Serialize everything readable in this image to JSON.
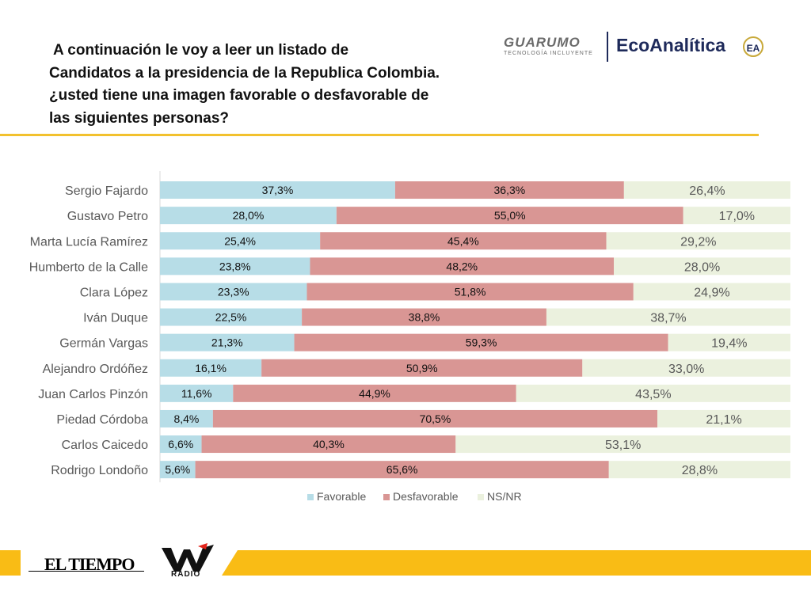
{
  "question": {
    "lines": [
      "A continuación le voy a leer un listado de",
      "Candidatos a la presidencia de la Republica Colombia.",
      "¿usted tiene una imagen favorable o desfavorable de",
      "las siguientes personas?"
    ]
  },
  "logos": {
    "guarumo": "GUARUMO",
    "guarumo_tagline": "TECNOLOGÍA INCLUYENTE",
    "ecoanalitica": "EcoAnalítica",
    "ecoanalitica_badge": "EA"
  },
  "footer": {
    "eltiempo": "EL TIEMPO",
    "wradio_letter": "W",
    "wradio_word": "RADIO"
  },
  "colors": {
    "favorable": "#b7dde7",
    "desfavorable": "#d99694",
    "nsnr": "#ebf1de",
    "accent": "#f9bc15"
  },
  "chart_data": {
    "type": "bar",
    "orientation": "horizontal",
    "stacked": true,
    "percent_scale": true,
    "categories": [
      "Sergio Fajardo",
      "Gustavo Petro",
      "Marta Lucía Ramírez",
      "Humberto de la Calle",
      "Clara López",
      "Iván Duque",
      "Germán Vargas",
      "Alejandro Ordóñez",
      "Juan Carlos Pinzón",
      "Piedad Córdoba",
      "Carlos Caicedo",
      "Rodrigo Londoño"
    ],
    "series": [
      {
        "name": "Favorable",
        "values": [
          37.3,
          28.0,
          25.4,
          23.8,
          23.3,
          22.5,
          21.3,
          16.1,
          11.6,
          8.4,
          6.6,
          5.6
        ],
        "labels": [
          "37,3%",
          "28,0%",
          "25,4%",
          "23,8%",
          "23,3%",
          "22,5%",
          "21,3%",
          "16,1%",
          "11,6%",
          "8,4%",
          "6,6%",
          "5,6%"
        ]
      },
      {
        "name": "Desfavorable",
        "values": [
          36.3,
          55.0,
          45.4,
          48.2,
          51.8,
          38.8,
          59.3,
          50.9,
          44.9,
          70.5,
          40.3,
          65.6
        ],
        "labels": [
          "36,3%",
          "55,0%",
          "45,4%",
          "48,2%",
          "51,8%",
          "38,8%",
          "59,3%",
          "50,9%",
          "44,9%",
          "70,5%",
          "40,3%",
          "65,6%"
        ]
      },
      {
        "name": "NS/NR",
        "values": [
          26.4,
          17.0,
          29.2,
          28.0,
          24.9,
          38.7,
          19.4,
          33.0,
          43.5,
          21.1,
          53.1,
          28.8
        ],
        "labels": [
          "26,4%",
          "17,0%",
          "29,2%",
          "28,0%",
          "24,9%",
          "38,7%",
          "19,4%",
          "33,0%",
          "43,5%",
          "21,1%",
          "53,1%",
          "28,8%"
        ]
      }
    ],
    "legend": [
      "Favorable",
      "Desfavorable",
      "NS/NR"
    ],
    "legend_position": "bottom"
  }
}
